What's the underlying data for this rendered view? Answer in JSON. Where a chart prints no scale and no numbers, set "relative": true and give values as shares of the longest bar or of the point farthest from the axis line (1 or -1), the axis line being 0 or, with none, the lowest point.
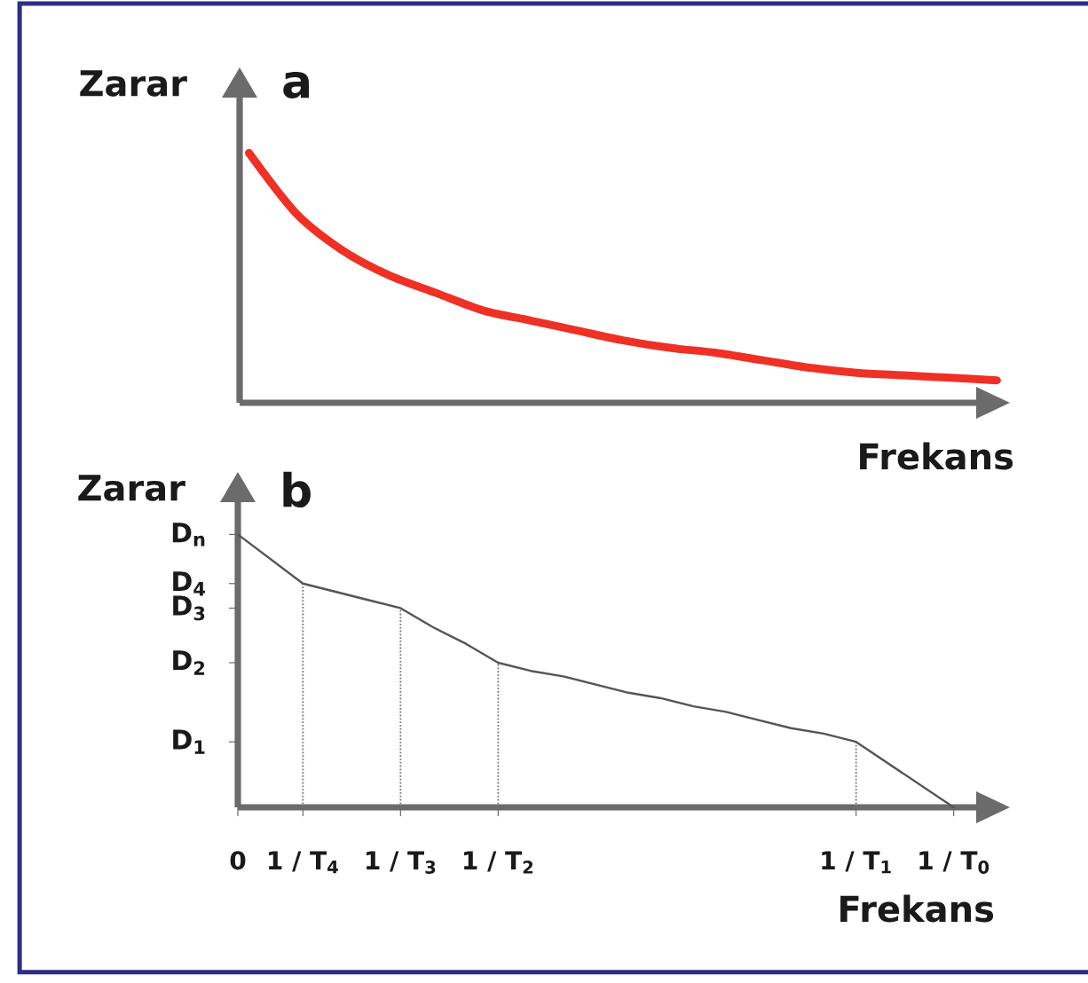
{
  "chart_data": [
    {
      "type": "line",
      "title": "a",
      "xlabel": "Frekans",
      "ylabel": "Zarar",
      "relative": true,
      "color": "#ee3124",
      "categories": [
        null,
        null,
        null,
        null,
        null,
        null,
        null,
        null,
        null,
        null,
        null,
        null,
        null,
        null,
        null,
        null,
        null
      ],
      "values": [
        1,
        0.76,
        0.61,
        0.51,
        0.44,
        0.37,
        0.33,
        0.29,
        0.25,
        0.22,
        0.2,
        0.17,
        0.14,
        0.12,
        0.11,
        0.1,
        0.09
      ]
    },
    {
      "type": "line",
      "title": "b",
      "xlabel": "Frekans",
      "ylabel": "Zarar",
      "relative": true,
      "color": "#555555",
      "categories": [
        "0",
        null,
        "1 / T$_{4}$",
        null,
        null,
        "1 / T$_{3}$",
        null,
        null,
        "1 / T$_{2}$",
        null,
        null,
        null,
        null,
        null,
        null,
        null,
        null,
        null,
        null,
        "1 / T$_{1}$",
        null,
        null,
        "1 / T$_{0}$"
      ],
      "values": [
        1,
        0.91,
        0.82,
        0.79,
        0.76,
        0.73,
        0.66,
        0.6,
        0.53,
        0.5,
        0.48,
        0.45,
        0.42,
        0.4,
        0.37,
        0.35,
        0.32,
        0.29,
        0.27,
        0.24,
        0.16,
        0.08,
        0
      ],
      "annotations": [
        "D$_{n}$",
        "D$_{4}$",
        "D$_{3}$",
        "D$_{2}$",
        "D$_{1}$"
      ],
      "ref_lines": [
        {
          "axis": "x",
          "value": "1 / T$_{4}$",
          "color": "#777777",
          "line_style": "dotted"
        },
        {
          "axis": "x",
          "value": "1 / T$_{3}$",
          "color": "#777777",
          "line_style": "dotted"
        },
        {
          "axis": "x",
          "value": "1 / T$_{2}$",
          "color": "#777777",
          "line_style": "dotted"
        },
        {
          "axis": "x",
          "value": "1 / T$_{1}$",
          "color": "#777777",
          "line_style": "dotted"
        }
      ]
    }
  ]
}
